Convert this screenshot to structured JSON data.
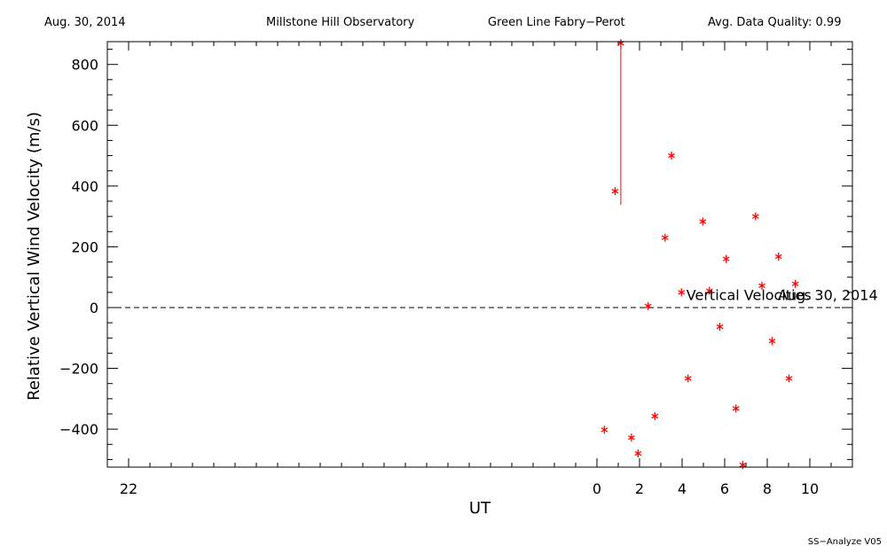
{
  "header": {
    "date": "Aug. 30, 2014",
    "observatory": "Millstone Hill Observatory",
    "instrument": "Green Line Fabry−Perot",
    "quality": "Avg. Data Quality: 0.99"
  },
  "footer": "SS−Analyze V05",
  "colors": {
    "marker": "#ff0000",
    "axis": "#000000"
  },
  "chart_data": {
    "type": "scatter",
    "xlabel": "UT",
    "ylabel": "Relative Vertical Wind Velocity (m/s)",
    "xlim": [
      -23,
      12
    ],
    "ylim": [
      -525,
      875
    ],
    "x_ticks": [
      {
        "value": -22,
        "label": "22"
      },
      {
        "value": 0,
        "label": "0"
      },
      {
        "value": 2,
        "label": "2"
      },
      {
        "value": 4,
        "label": "4"
      },
      {
        "value": 6,
        "label": "6"
      },
      {
        "value": 8,
        "label": "8"
      },
      {
        "value": 10,
        "label": "10"
      }
    ],
    "y_ticks": [
      {
        "value": -400,
        "label": "−400"
      },
      {
        "value": -200,
        "label": "−200"
      },
      {
        "value": 0,
        "label": "0"
      },
      {
        "value": 200,
        "label": "200"
      },
      {
        "value": 400,
        "label": "400"
      },
      {
        "value": 600,
        "label": "600"
      },
      {
        "value": 800,
        "label": "800"
      }
    ],
    "zero_line": 0,
    "legend": {
      "label": "Vertical Velocities",
      "date": "Aug. 30, 2014"
    },
    "series": [
      {
        "name": "Vertical Velocities",
        "points": [
          {
            "x": 0.35,
            "y": -402
          },
          {
            "x": 0.85,
            "y": 383
          },
          {
            "x": 1.12,
            "y": 870
          },
          {
            "x": 1.62,
            "y": -428
          },
          {
            "x": 1.93,
            "y": -480
          },
          {
            "x": 2.4,
            "y": 5
          },
          {
            "x": 2.72,
            "y": -357
          },
          {
            "x": 3.2,
            "y": 230
          },
          {
            "x": 3.5,
            "y": 500
          },
          {
            "x": 3.97,
            "y": 50
          },
          {
            "x": 4.28,
            "y": -233
          },
          {
            "x": 4.97,
            "y": 283
          },
          {
            "x": 5.28,
            "y": 55
          },
          {
            "x": 5.77,
            "y": -63
          },
          {
            "x": 6.07,
            "y": 160
          },
          {
            "x": 6.53,
            "y": -332
          },
          {
            "x": 6.85,
            "y": -518
          },
          {
            "x": 7.45,
            "y": 300
          },
          {
            "x": 7.75,
            "y": 72
          },
          {
            "x": 8.23,
            "y": -110
          },
          {
            "x": 8.53,
            "y": 168
          },
          {
            "x": 9.02,
            "y": -233
          },
          {
            "x": 9.32,
            "y": 78
          }
        ],
        "error_bars": [
          {
            "x": 1.12,
            "low": 338,
            "high": 870
          }
        ]
      }
    ]
  }
}
